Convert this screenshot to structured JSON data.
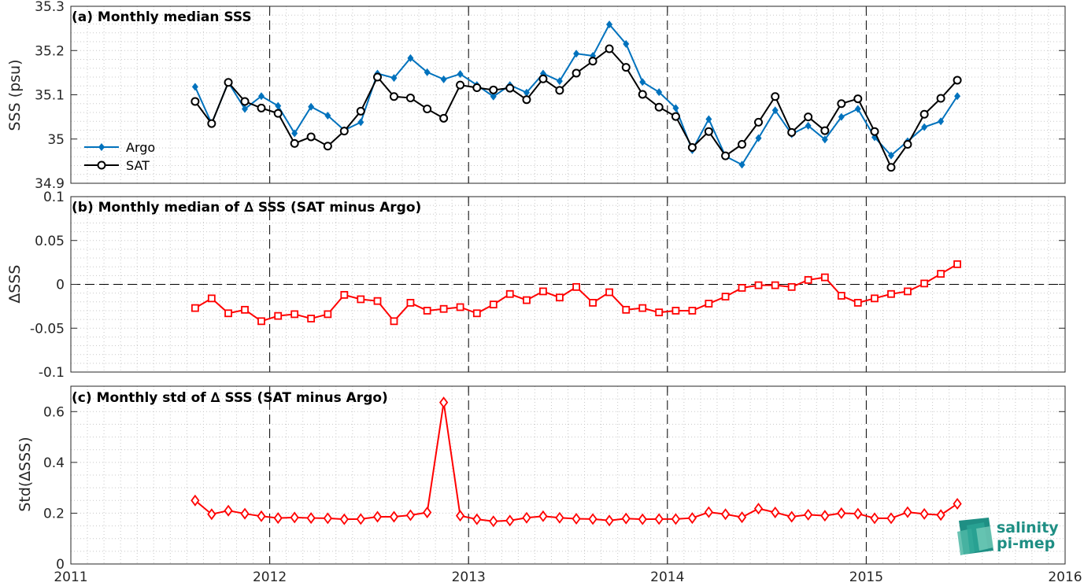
{
  "chart_data": [
    {
      "type": "line",
      "title": "(a) Monthly median SSS",
      "xlabel": "",
      "ylabel": "SSS (psu)",
      "xlim": [
        2011,
        2016
      ],
      "ylim": [
        34.9,
        35.3
      ],
      "yticks": [
        "34.9",
        "35",
        "35.1",
        "35.2",
        "35.3"
      ],
      "grid": true,
      "legend": "lower-left",
      "x": [
        2011.625,
        2011.708,
        2011.792,
        2011.875,
        2011.958,
        2012.042,
        2012.125,
        2012.208,
        2012.292,
        2012.375,
        2012.458,
        2012.542,
        2012.625,
        2012.708,
        2012.792,
        2012.875,
        2012.958,
        2013.042,
        2013.125,
        2013.208,
        2013.292,
        2013.375,
        2013.458,
        2013.542,
        2013.625,
        2013.708,
        2013.792,
        2013.875,
        2013.958,
        2014.042,
        2014.125,
        2014.208,
        2014.292,
        2014.375,
        2014.458,
        2014.542,
        2014.625,
        2014.708,
        2014.792,
        2014.875,
        2014.958,
        2015.042,
        2015.125,
        2015.208,
        2015.292,
        2015.375,
        2015.458
      ],
      "series": [
        {
          "name": "Argo",
          "color": "#0072bd",
          "marker": "diamond",
          "values": [
            35.118,
            35.035,
            35.128,
            35.068,
            35.097,
            35.075,
            35.013,
            35.073,
            35.053,
            35.02,
            35.038,
            35.148,
            35.138,
            35.183,
            35.151,
            35.135,
            35.147,
            35.122,
            35.096,
            35.122,
            35.105,
            35.148,
            35.131,
            35.193,
            35.188,
            35.259,
            35.215,
            35.129,
            35.106,
            35.07,
            34.975,
            35.045,
            34.961,
            34.942,
            35.002,
            35.065,
            35.011,
            35.03,
            34.999,
            35.05,
            35.068,
            35.004,
            34.963,
            34.995,
            35.027,
            35.04,
            35.097
          ]
        },
        {
          "name": "SAT",
          "color": "#000000",
          "marker": "circle",
          "values": [
            35.085,
            35.035,
            35.128,
            35.085,
            35.07,
            35.058,
            34.99,
            35.005,
            34.984,
            35.018,
            35.063,
            35.14,
            35.096,
            35.093,
            35.068,
            35.047,
            35.122,
            35.116,
            35.111,
            35.115,
            35.089,
            35.136,
            35.11,
            35.149,
            35.176,
            35.204,
            35.162,
            35.101,
            35.072,
            35.051,
            34.981,
            35.017,
            34.962,
            34.988,
            35.038,
            35.096,
            35.015,
            35.05,
            35.019,
            35.08,
            35.091,
            35.017,
            34.936,
            34.988,
            35.056,
            35.092,
            35.133
          ]
        }
      ]
    },
    {
      "type": "line",
      "title": "(b) Monthly median of ∆ SSS (SAT minus Argo)",
      "xlabel": "",
      "ylabel": "∆SSS",
      "xlim": [
        2011,
        2016
      ],
      "ylim": [
        -0.1,
        0.1
      ],
      "yticks": [
        "-0.1",
        "-0.05",
        "0",
        "0.05",
        "0.1"
      ],
      "grid": true,
      "x": [
        2011.625,
        2011.708,
        2011.792,
        2011.875,
        2011.958,
        2012.042,
        2012.125,
        2012.208,
        2012.292,
        2012.375,
        2012.458,
        2012.542,
        2012.625,
        2012.708,
        2012.792,
        2012.875,
        2012.958,
        2013.042,
        2013.125,
        2013.208,
        2013.292,
        2013.375,
        2013.458,
        2013.542,
        2013.625,
        2013.708,
        2013.792,
        2013.875,
        2013.958,
        2014.042,
        2014.125,
        2014.208,
        2014.292,
        2014.375,
        2014.458,
        2014.542,
        2014.625,
        2014.708,
        2014.792,
        2014.875,
        2014.958,
        2015.042,
        2015.125,
        2015.208,
        2015.292,
        2015.375,
        2015.458
      ],
      "series": [
        {
          "color": "#ff0000",
          "marker": "square",
          "values": [
            -0.027,
            -0.016,
            -0.033,
            -0.029,
            -0.042,
            -0.036,
            -0.034,
            -0.039,
            -0.034,
            -0.012,
            -0.017,
            -0.019,
            -0.042,
            -0.021,
            -0.03,
            -0.028,
            -0.026,
            -0.033,
            -0.023,
            -0.011,
            -0.018,
            -0.008,
            -0.015,
            -0.003,
            -0.021,
            -0.009,
            -0.029,
            -0.027,
            -0.032,
            -0.03,
            -0.03,
            -0.022,
            -0.014,
            -0.004,
            -0.001,
            -0.001,
            -0.003,
            0.005,
            0.008,
            -0.013,
            -0.021,
            -0.016,
            -0.011,
            -0.008,
            0.001,
            0.012,
            0.023
          ]
        }
      ]
    },
    {
      "type": "line",
      "title": "(c) Monthly std of ∆ SSS (SAT minus Argo)",
      "xlabel": "",
      "ylabel": "Std(∆SSS)",
      "xlim": [
        2011,
        2016
      ],
      "ylim": [
        0,
        0.7
      ],
      "xticks": [
        "2011",
        "2012",
        "2013",
        "2014",
        "2015",
        "2016"
      ],
      "yticks": [
        "0",
        "0.2",
        "0.4",
        "0.6"
      ],
      "grid": true,
      "x": [
        2011.625,
        2011.708,
        2011.792,
        2011.875,
        2011.958,
        2012.042,
        2012.125,
        2012.208,
        2012.292,
        2012.375,
        2012.458,
        2012.542,
        2012.625,
        2012.708,
        2012.792,
        2012.875,
        2012.958,
        2013.042,
        2013.125,
        2013.208,
        2013.292,
        2013.375,
        2013.458,
        2013.542,
        2013.625,
        2013.708,
        2013.792,
        2013.875,
        2013.958,
        2014.042,
        2014.125,
        2014.208,
        2014.292,
        2014.375,
        2014.458,
        2014.542,
        2014.625,
        2014.708,
        2014.792,
        2014.875,
        2014.958,
        2015.042,
        2015.125,
        2015.208,
        2015.292,
        2015.375,
        2015.458
      ],
      "series": [
        {
          "color": "#ff0000",
          "marker": "diamond-open",
          "values": [
            0.25,
            0.196,
            0.21,
            0.198,
            0.188,
            0.181,
            0.183,
            0.181,
            0.18,
            0.176,
            0.177,
            0.186,
            0.186,
            0.192,
            0.203,
            0.636,
            0.19,
            0.176,
            0.168,
            0.171,
            0.182,
            0.188,
            0.182,
            0.178,
            0.177,
            0.171,
            0.179,
            0.176,
            0.177,
            0.177,
            0.181,
            0.204,
            0.196,
            0.184,
            0.218,
            0.203,
            0.186,
            0.194,
            0.19,
            0.2,
            0.198,
            0.18,
            0.18,
            0.204,
            0.197,
            0.193,
            0.237
          ]
        }
      ]
    }
  ],
  "logo": {
    "line1": "salinity",
    "line2": "pi-mep",
    "color": "#1f8f84"
  }
}
